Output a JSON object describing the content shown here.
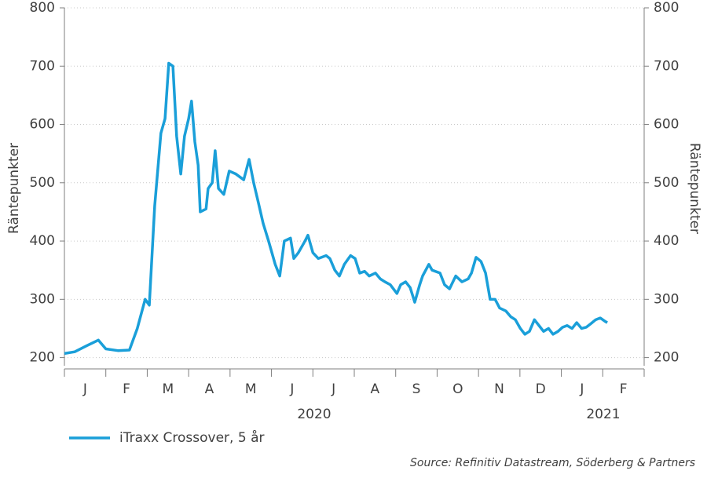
{
  "chart_data": {
    "type": "line",
    "categories": [
      "J",
      "F",
      "M",
      "A",
      "M",
      "J",
      "J",
      "A",
      "S",
      "O",
      "N",
      "D",
      "J",
      "F"
    ],
    "years": [
      "2020",
      "2021"
    ],
    "x": [
      0,
      0.25,
      0.53,
      0.82,
      1.0,
      1.29,
      1.57,
      1.76,
      1.95,
      2.05,
      2.18,
      2.33,
      2.43,
      2.52,
      2.62,
      2.71,
      2.81,
      2.9,
      3.0,
      3.07,
      3.15,
      3.23,
      3.28,
      3.42,
      3.47,
      3.57,
      3.64,
      3.72,
      3.85,
      3.98,
      4.14,
      4.33,
      4.46,
      4.57,
      4.67,
      4.8,
      4.93,
      5.09,
      5.2,
      5.31,
      5.46,
      5.54,
      5.65,
      5.81,
      5.88,
      6.0,
      6.13,
      6.32,
      6.41,
      6.53,
      6.64,
      6.76,
      6.91,
      7.02,
      7.13,
      7.25,
      7.36,
      7.51,
      7.63,
      7.74,
      7.87,
      8.03,
      8.12,
      8.24,
      8.35,
      8.46,
      8.58,
      8.65,
      8.8,
      8.88,
      9.07,
      9.18,
      9.3,
      9.45,
      9.6,
      9.75,
      9.83,
      9.94,
      10.06,
      10.17,
      10.28,
      10.4,
      10.51,
      10.66,
      10.78,
      10.89,
      11.01,
      11.12,
      11.23,
      11.35,
      11.46,
      11.57,
      11.69,
      11.8,
      11.92,
      12.03,
      12.14,
      12.26,
      12.37,
      12.49,
      12.6,
      12.71,
      12.83,
      12.94,
      13.06,
      13.11
    ],
    "xlim": [
      0,
      14
    ],
    "series": [
      {
        "name": "iTraxx Crossover, 5 år",
        "color": "#1a9fd9",
        "values": [
          207,
          210,
          220,
          230,
          215,
          212,
          213,
          250,
          300,
          290,
          460,
          585,
          610,
          705,
          700,
          580,
          515,
          580,
          610,
          640,
          570,
          530,
          450,
          455,
          490,
          500,
          555,
          490,
          480,
          520,
          515,
          505,
          540,
          500,
          470,
          430,
          400,
          360,
          340,
          400,
          405,
          370,
          380,
          400,
          410,
          380,
          370,
          375,
          370,
          350,
          340,
          360,
          375,
          370,
          345,
          348,
          340,
          345,
          335,
          330,
          325,
          310,
          325,
          330,
          320,
          295,
          325,
          340,
          360,
          350,
          345,
          325,
          318,
          340,
          330,
          335,
          345,
          372,
          365,
          345,
          300,
          300,
          285,
          280,
          270,
          265,
          250,
          240,
          245,
          265,
          255,
          245,
          250,
          240,
          245,
          252,
          255,
          250,
          260,
          250,
          252,
          258,
          265,
          268,
          262,
          260
        ]
      }
    ],
    "ylabel": "Räntepunkter",
    "y2label": "Räntepunkter",
    "ylim": [
      186,
      800
    ],
    "yticks": [
      200,
      300,
      400,
      500,
      600,
      700,
      800
    ],
    "y2lim": [
      186,
      800
    ],
    "y2ticks": [
      200,
      300,
      400,
      500,
      600,
      700,
      800
    ],
    "grid": true,
    "source": "Source: Refinitiv Datastream, Söderberg & Partners"
  }
}
